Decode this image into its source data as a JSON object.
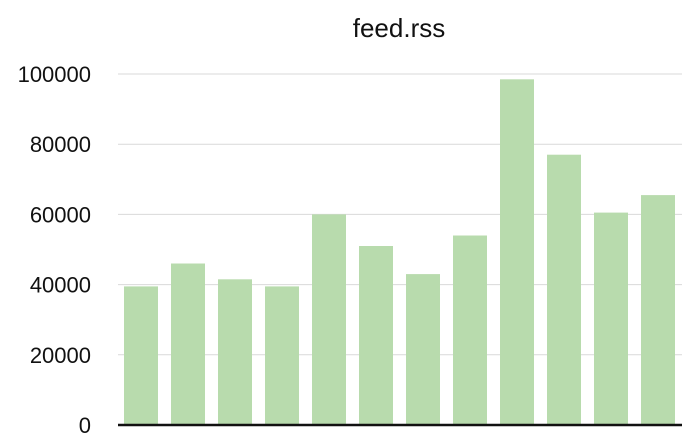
{
  "chart_data": {
    "type": "bar",
    "title": "feed.rss",
    "xlabel": "",
    "ylabel": "",
    "categories": [
      "",
      "",
      "",
      "",
      "",
      "",
      "",
      "",
      "",
      "",
      "",
      ""
    ],
    "values": [
      39500,
      46000,
      41500,
      39500,
      60000,
      51000,
      43000,
      54000,
      98500,
      77000,
      60500,
      65500
    ],
    "ylim": [
      0,
      100000
    ],
    "yticks": [
      0,
      20000,
      40000,
      60000,
      80000,
      100000
    ],
    "ytick_labels": [
      "0",
      "20000",
      "40000",
      "60000",
      "80000",
      "100000"
    ],
    "grid": true,
    "legend": "none",
    "bar_color": "#b8dbad",
    "axis_color": "#111111",
    "grid_color": "#d9d9d9"
  }
}
